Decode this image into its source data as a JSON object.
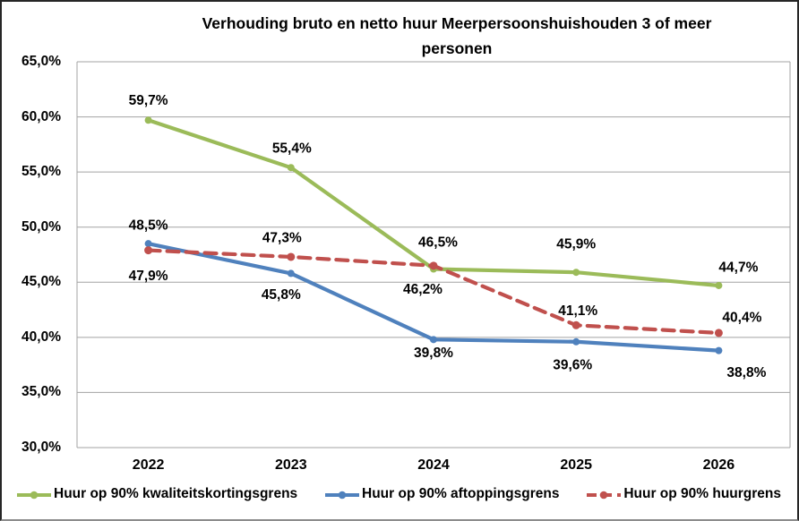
{
  "chart": {
    "title_lines": [
      "Verhouding bruto en netto huur Meerpersoonshuishouden 3 of meer",
      "personen"
    ],
    "y_tick_labels": [
      "65,0%",
      "60,0%",
      "55,0%",
      "50,0%",
      "45,0%",
      "40,0%",
      "35,0%",
      "30,0%"
    ],
    "x_tick_labels": [
      "2022",
      "2023",
      "2024",
      "2025",
      "2026"
    ],
    "grid_color": "#A3A3A3",
    "background_color": "#FFFFFF",
    "text_color": "#000000"
  },
  "chart_data": {
    "type": "line",
    "title": "Verhouding bruto en netto huur Meerpersoonshuishouden 3 of meer personen",
    "categories": [
      "2022",
      "2023",
      "2024",
      "2025",
      "2026"
    ],
    "xlabel": "",
    "ylabel": "",
    "ylim": [
      30,
      65
    ],
    "y_tick_step": 5,
    "grid": true,
    "legend_position": "bottom",
    "value_format": "0,0%",
    "series": [
      {
        "name": "Huur op 90% kwaliteitskortingsgrens",
        "color": "#9BBB59",
        "line_style": "solid",
        "values": [
          59.7,
          55.4,
          46.2,
          45.9,
          44.7
        ],
        "labels": [
          "59,7%",
          "55,4%",
          "46,2%",
          "45,9%",
          "44,7%"
        ],
        "label_offsets": [
          [
            0,
            -23
          ],
          [
            1,
            -22
          ],
          [
            -12,
            22
          ],
          [
            0,
            -32
          ],
          [
            22,
            -21
          ]
        ]
      },
      {
        "name": "Huur op 90% aftoppingsgrens",
        "color": "#4F81BD",
        "line_style": "solid",
        "values": [
          48.5,
          45.8,
          39.8,
          39.6,
          38.8
        ],
        "labels": [
          "48,5%",
          "45,8%",
          "39,8%",
          "39,6%",
          "38,8%"
        ],
        "label_offsets": [
          [
            0,
            -21
          ],
          [
            -11,
            23
          ],
          [
            0,
            14
          ],
          [
            -4,
            25
          ],
          [
            31,
            24
          ]
        ]
      },
      {
        "name": "Huur op 90% huurgrens",
        "color": "#C0504D",
        "line_style": "dashed",
        "values": [
          47.9,
          47.3,
          46.5,
          41.1,
          40.4
        ],
        "labels": [
          "47,9%",
          "47,3%",
          "46,5%",
          "41,1%",
          "40,4%"
        ],
        "label_offsets": [
          [
            0,
            28
          ],
          [
            -10,
            -22
          ],
          [
            5,
            -27
          ],
          [
            2,
            -17
          ],
          [
            26,
            -18
          ]
        ]
      }
    ]
  }
}
